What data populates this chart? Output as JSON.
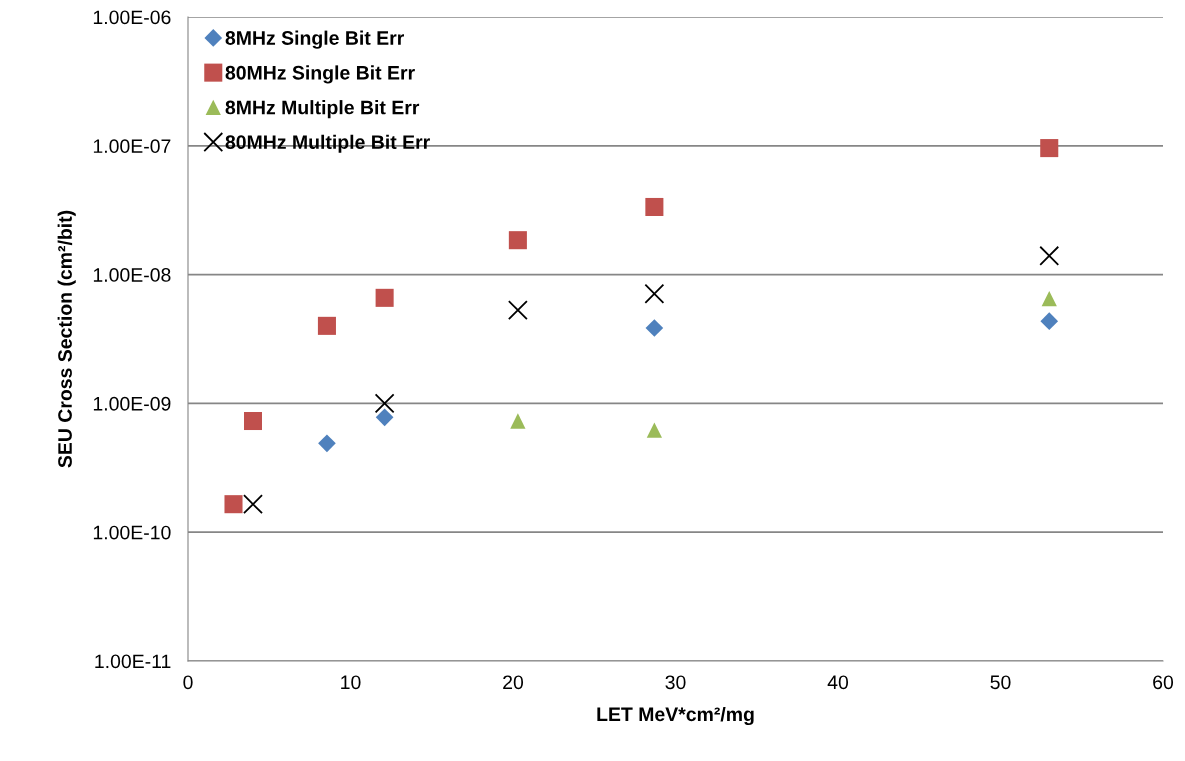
{
  "chart_data": {
    "type": "scatter",
    "xlabel": "LET MeV*cm²/mg",
    "ylabel": "SEU Cross Section (cm²/bit)",
    "log": "y",
    "grid": "y",
    "legend": "top left",
    "xlim": [
      0,
      60
    ],
    "xticks": [
      0,
      10,
      20,
      30,
      40,
      50,
      60
    ],
    "ylim": [
      1e-11,
      1e-06
    ],
    "yticks": [
      {
        "value": 1e-11,
        "label": "1.00E-11"
      },
      {
        "value": 1e-10,
        "label": "1.00E-10"
      },
      {
        "value": 1e-09,
        "label": "1.00E-09"
      },
      {
        "value": 1e-08,
        "label": "1.00E-08"
      },
      {
        "value": 1e-07,
        "label": "1.00E-07"
      },
      {
        "value": 1e-06,
        "label": "1.00E-06"
      }
    ],
    "series": [
      {
        "name": "8MHz Single Bit Err",
        "color": "#4f81bd",
        "marker": "diamond",
        "x": [
          8.55,
          12.1,
          28.7,
          53.0
        ],
        "values": [
          4.9e-10,
          7.8e-10,
          3.85e-09,
          4.35e-09
        ]
      },
      {
        "name": "80MHz Single Bit Err",
        "color": "#c0504d",
        "marker": "square",
        "x": [
          2.8,
          4.0,
          8.55,
          12.1,
          20.3,
          28.7,
          53.0
        ],
        "values": [
          1.65e-10,
          7.3e-10,
          4e-09,
          6.6e-09,
          1.85e-08,
          3.35e-08,
          9.6e-08
        ]
      },
      {
        "name": "8MHz Multiple Bit Err",
        "color": "#9bbb59",
        "marker": "triangle",
        "x": [
          20.3,
          28.7,
          53.0
        ],
        "values": [
          7.3e-10,
          6.2e-10,
          6.5e-09
        ]
      },
      {
        "name": "80MHz Multiple Bit Err",
        "color": "#000000",
        "marker": "cross",
        "x": [
          4.0,
          12.1,
          20.3,
          28.7,
          53.0
        ],
        "values": [
          1.65e-10,
          1e-09,
          5.3e-09,
          7.1e-09,
          1.4e-08
        ]
      }
    ]
  }
}
